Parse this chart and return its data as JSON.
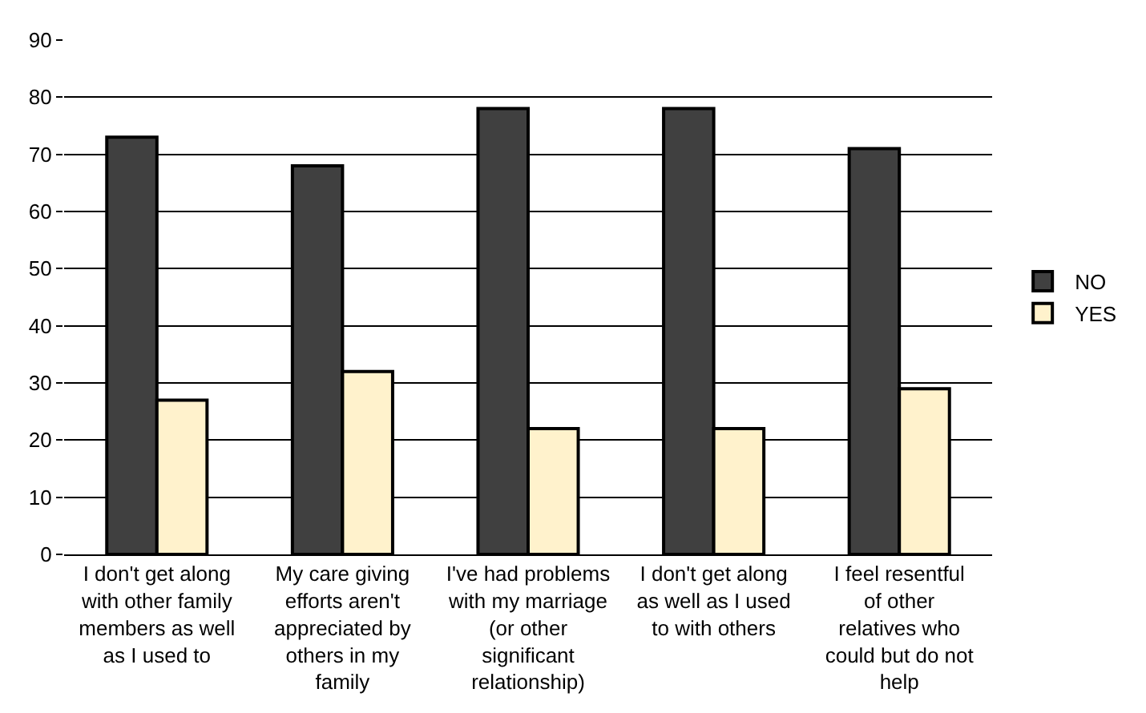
{
  "chart_data": {
    "type": "bar",
    "categories": [
      "I don't get along with other family members as well as I used to",
      "My care giving efforts aren't appreciated by others in my family",
      "I've had problems with my marriage (or other significant relationship)",
      "I don't get along as well as I used to with others",
      "I feel resentful of other relatives who could but do not help"
    ],
    "series": [
      {
        "name": "NO",
        "color": "#404040",
        "values": [
          73,
          68,
          78,
          78,
          71
        ]
      },
      {
        "name": "YES",
        "color": "#fff2cc",
        "values": [
          27,
          32,
          22,
          22,
          29
        ]
      }
    ],
    "ylim": [
      0,
      90
    ],
    "yticks": [
      0,
      10,
      20,
      30,
      40,
      50,
      60,
      70,
      80,
      90
    ],
    "grid": "y",
    "legend": "right"
  }
}
